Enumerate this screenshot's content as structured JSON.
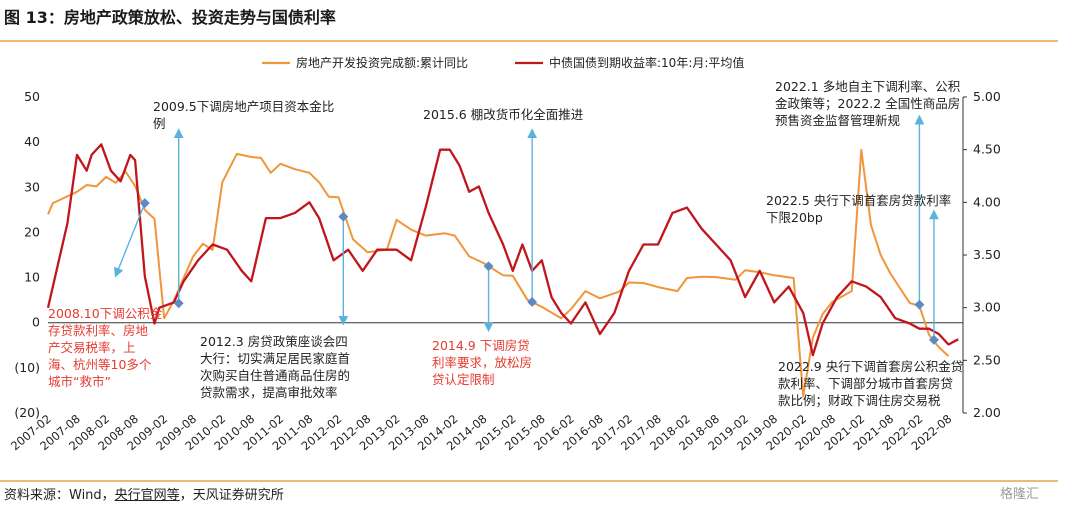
{
  "header": {
    "title": "图 13：房地产政策放松、投资走势与国债利率"
  },
  "footer": {
    "source_prefix": "资料来源：Wind，",
    "source_link": "央行官网等",
    "source_suffix": "，天风证券研究所",
    "logo_text": "格隆汇"
  },
  "colors": {
    "orange": "#f0963a",
    "red": "#c0161c",
    "marker": "#5b8bc4",
    "arrow": "#5ab3dc",
    "accent_line": "#f2b877",
    "red_text": "#e63a2e"
  },
  "annotations": [
    {
      "id": "a1",
      "text": "2009.5下调房地产项目资本金比\n例",
      "color": "black"
    },
    {
      "id": "a2",
      "text": "2015.6 棚改货币化全面推进",
      "color": "black"
    },
    {
      "id": "a3",
      "text": "2022.1 多地自主下调利率、公积\n金政策等；2022.2 全国性商品房\n预售资金监督管理新规",
      "color": "black"
    },
    {
      "id": "a4",
      "text": "2022.5 央行下调首套房贷款利率\n下限20bp",
      "color": "black"
    },
    {
      "id": "a5",
      "text": "2008.10下调公积金\n存贷款利率、房地\n产交易税率，上\n海、杭州等10多个\n城市“救市”",
      "color": "red"
    },
    {
      "id": "a6",
      "text": "2012.3 房贷政策座谈会四\n大行：切实满足居民家庭首\n次购买自住普通商品住房的\n贷款需求，提高审批效率",
      "color": "black"
    },
    {
      "id": "a7",
      "text": "2014.9 下调房贷\n利率要求，放松房\n贷认定限制",
      "color": "red"
    },
    {
      "id": "a8",
      "text": "2022.9 央行下调首套房公积金贷\n款利率、下调部分城市首套房贷\n款比例；财政下调住房交易税",
      "color": "black"
    }
  ],
  "chart_data": {
    "type": "line",
    "x_ticks": [
      "2007-02",
      "2007-08",
      "2008-02",
      "2008-08",
      "2009-02",
      "2009-08",
      "2010-02",
      "2010-08",
      "2011-02",
      "2011-08",
      "2012-02",
      "2012-08",
      "2013-02",
      "2013-08",
      "2014-02",
      "2014-08",
      "2015-02",
      "2015-08",
      "2016-02",
      "2016-08",
      "2017-02",
      "2017-08",
      "2018-02",
      "2018-08",
      "2019-02",
      "2019-08",
      "2020-02",
      "2020-08",
      "2021-02",
      "2021-08",
      "2022-02",
      "2022-08"
    ],
    "y_left": {
      "ticks": [
        "50",
        "40",
        "30",
        "20",
        "10",
        "0",
        "(10)",
        "(20)"
      ],
      "range": [
        -20,
        50
      ]
    },
    "y_right": {
      "ticks": [
        "5.00",
        "4.50",
        "4.00",
        "3.50",
        "3.00",
        "2.50",
        "2.00"
      ],
      "range": [
        2.0,
        5.0
      ]
    },
    "legend_position": "top",
    "series": [
      {
        "name": "房地产开发投资完成额:累计同比",
        "axis": "left",
        "color": "#f0963a",
        "points": [
          [
            "2007-02",
            24
          ],
          [
            "2007-03",
            26.5
          ],
          [
            "2007-05",
            27.5
          ],
          [
            "2007-08",
            29
          ],
          [
            "2007-10",
            30.5
          ],
          [
            "2007-12",
            30.2
          ],
          [
            "2008-02",
            32.3
          ],
          [
            "2008-04",
            31
          ],
          [
            "2008-06",
            33.5
          ],
          [
            "2008-08",
            30.3
          ],
          [
            "2008-10",
            25
          ],
          [
            "2008-12",
            23
          ],
          [
            "2009-02",
            1.0
          ],
          [
            "2009-04",
            4.9
          ],
          [
            "2009-06",
            9.9
          ],
          [
            "2009-08",
            14.7
          ],
          [
            "2009-10",
            17.5
          ],
          [
            "2009-12",
            16.1
          ],
          [
            "2010-02",
            31.1
          ],
          [
            "2010-05",
            37.4
          ],
          [
            "2010-08",
            36.7
          ],
          [
            "2010-10",
            36.5
          ],
          [
            "2010-12",
            33.2
          ],
          [
            "2011-02",
            35.2
          ],
          [
            "2011-05",
            34
          ],
          [
            "2011-08",
            33.2
          ],
          [
            "2011-10",
            31.1
          ],
          [
            "2011-12",
            27.9
          ],
          [
            "2012-02",
            27.8
          ],
          [
            "2012-05",
            18.5
          ],
          [
            "2012-08",
            15.6
          ],
          [
            "2012-12",
            16.2
          ],
          [
            "2013-02",
            22.8
          ],
          [
            "2013-05",
            20.6
          ],
          [
            "2013-08",
            19.3
          ],
          [
            "2013-12",
            19.8
          ],
          [
            "2014-02",
            19.3
          ],
          [
            "2014-05",
            14.7
          ],
          [
            "2014-08",
            13.2
          ],
          [
            "2014-12",
            10.5
          ],
          [
            "2015-02",
            10.4
          ],
          [
            "2015-05",
            5.1
          ],
          [
            "2015-08",
            3.5
          ],
          [
            "2015-12",
            1.0
          ],
          [
            "2016-02",
            3.0
          ],
          [
            "2016-05",
            7.0
          ],
          [
            "2016-08",
            5.4
          ],
          [
            "2016-12",
            6.9
          ],
          [
            "2017-02",
            8.9
          ],
          [
            "2017-05",
            8.8
          ],
          [
            "2017-08",
            7.9
          ],
          [
            "2017-12",
            7.0
          ],
          [
            "2018-02",
            9.9
          ],
          [
            "2018-05",
            10.2
          ],
          [
            "2018-08",
            10.1
          ],
          [
            "2018-12",
            9.5
          ],
          [
            "2019-02",
            11.6
          ],
          [
            "2019-05",
            11.2
          ],
          [
            "2019-08",
            10.5
          ],
          [
            "2019-12",
            9.9
          ],
          [
            "2020-02",
            -16.3
          ],
          [
            "2020-04",
            -3.3
          ],
          [
            "2020-06",
            1.9
          ],
          [
            "2020-08",
            4.6
          ],
          [
            "2020-12",
            7.0
          ],
          [
            "2021-02",
            38.3
          ],
          [
            "2021-04",
            21.6
          ],
          [
            "2021-06",
            15.0
          ],
          [
            "2021-08",
            10.9
          ],
          [
            "2021-12",
            4.4
          ],
          [
            "2022-02",
            3.7
          ],
          [
            "2022-04",
            -2.7
          ],
          [
            "2022-06",
            -5.4
          ],
          [
            "2022-08",
            -7.4
          ]
        ]
      },
      {
        "name": "中债国债到期收益率:10年:月:平均值",
        "axis": "right",
        "color": "#c0161c",
        "points": [
          [
            "2007-02",
            3.0
          ],
          [
            "2007-04",
            3.4
          ],
          [
            "2007-06",
            3.8
          ],
          [
            "2007-08",
            4.45
          ],
          [
            "2007-10",
            4.3
          ],
          [
            "2007-11",
            4.45
          ],
          [
            "2008-01",
            4.55
          ],
          [
            "2008-03",
            4.3
          ],
          [
            "2008-05",
            4.2
          ],
          [
            "2008-07",
            4.45
          ],
          [
            "2008-08",
            4.4
          ],
          [
            "2008-10",
            3.3
          ],
          [
            "2008-12",
            2.85
          ],
          [
            "2009-01",
            3.0
          ],
          [
            "2009-04",
            3.05
          ],
          [
            "2009-06",
            3.25
          ],
          [
            "2009-09",
            3.45
          ],
          [
            "2009-12",
            3.6
          ],
          [
            "2010-03",
            3.55
          ],
          [
            "2010-06",
            3.35
          ],
          [
            "2010-08",
            3.25
          ],
          [
            "2010-11",
            3.85
          ],
          [
            "2011-02",
            3.85
          ],
          [
            "2011-05",
            3.9
          ],
          [
            "2011-08",
            4.0
          ],
          [
            "2011-10",
            3.85
          ],
          [
            "2012-01",
            3.45
          ],
          [
            "2012-04",
            3.55
          ],
          [
            "2012-07",
            3.35
          ],
          [
            "2012-10",
            3.55
          ],
          [
            "2013-02",
            3.55
          ],
          [
            "2013-05",
            3.45
          ],
          [
            "2013-08",
            3.95
          ],
          [
            "2013-11",
            4.5
          ],
          [
            "2014-01",
            4.5
          ],
          [
            "2014-03",
            4.35
          ],
          [
            "2014-05",
            4.1
          ],
          [
            "2014-07",
            4.15
          ],
          [
            "2014-09",
            3.9
          ],
          [
            "2014-12",
            3.6
          ],
          [
            "2015-02",
            3.35
          ],
          [
            "2015-04",
            3.6
          ],
          [
            "2015-06",
            3.35
          ],
          [
            "2015-08",
            3.45
          ],
          [
            "2015-10",
            3.1
          ],
          [
            "2015-12",
            2.95
          ],
          [
            "2016-02",
            2.85
          ],
          [
            "2016-05",
            3.05
          ],
          [
            "2016-08",
            2.75
          ],
          [
            "2016-11",
            2.95
          ],
          [
            "2017-02",
            3.35
          ],
          [
            "2017-05",
            3.6
          ],
          [
            "2017-08",
            3.6
          ],
          [
            "2017-11",
            3.9
          ],
          [
            "2018-02",
            3.95
          ],
          [
            "2018-05",
            3.75
          ],
          [
            "2018-08",
            3.6
          ],
          [
            "2018-11",
            3.45
          ],
          [
            "2019-02",
            3.1
          ],
          [
            "2019-05",
            3.35
          ],
          [
            "2019-08",
            3.05
          ],
          [
            "2019-11",
            3.2
          ],
          [
            "2020-02",
            2.95
          ],
          [
            "2020-04",
            2.55
          ],
          [
            "2020-06",
            2.85
          ],
          [
            "2020-09",
            3.1
          ],
          [
            "2020-12",
            3.25
          ],
          [
            "2021-03",
            3.2
          ],
          [
            "2021-06",
            3.1
          ],
          [
            "2021-09",
            2.9
          ],
          [
            "2021-12",
            2.85
          ],
          [
            "2022-02",
            2.8
          ],
          [
            "2022-04",
            2.8
          ],
          [
            "2022-06",
            2.75
          ],
          [
            "2022-08",
            2.65
          ],
          [
            "2022-10",
            2.7
          ]
        ]
      }
    ],
    "markers": [
      {
        "series": "房地产开发投资完成额:累计同比",
        "x": "2008-10",
        "y": 26.5,
        "direction": "down-left"
      },
      {
        "series": "房地产开发投资完成额:累计同比",
        "x": "2009-05",
        "y": 4.3,
        "direction": "up"
      },
      {
        "series": "房地产开发投资完成额:累计同比",
        "x": "2012-03",
        "y": 23.5,
        "direction": "down"
      },
      {
        "series": "房地产开发投资完成额:累计同比",
        "x": "2014-09",
        "y": 12.5,
        "direction": "down"
      },
      {
        "series": "房地产开发投资完成额:累计同比",
        "x": "2015-06",
        "y": 4.6,
        "direction": "up"
      },
      {
        "series": "房地产开发投资完成额:累计同比",
        "x": "2022-02",
        "y": 4.0,
        "direction": "up"
      },
      {
        "series": "房地产开发投资完成额:累计同比",
        "x": "2022-05",
        "y": -3.8,
        "direction": "up"
      }
    ]
  }
}
